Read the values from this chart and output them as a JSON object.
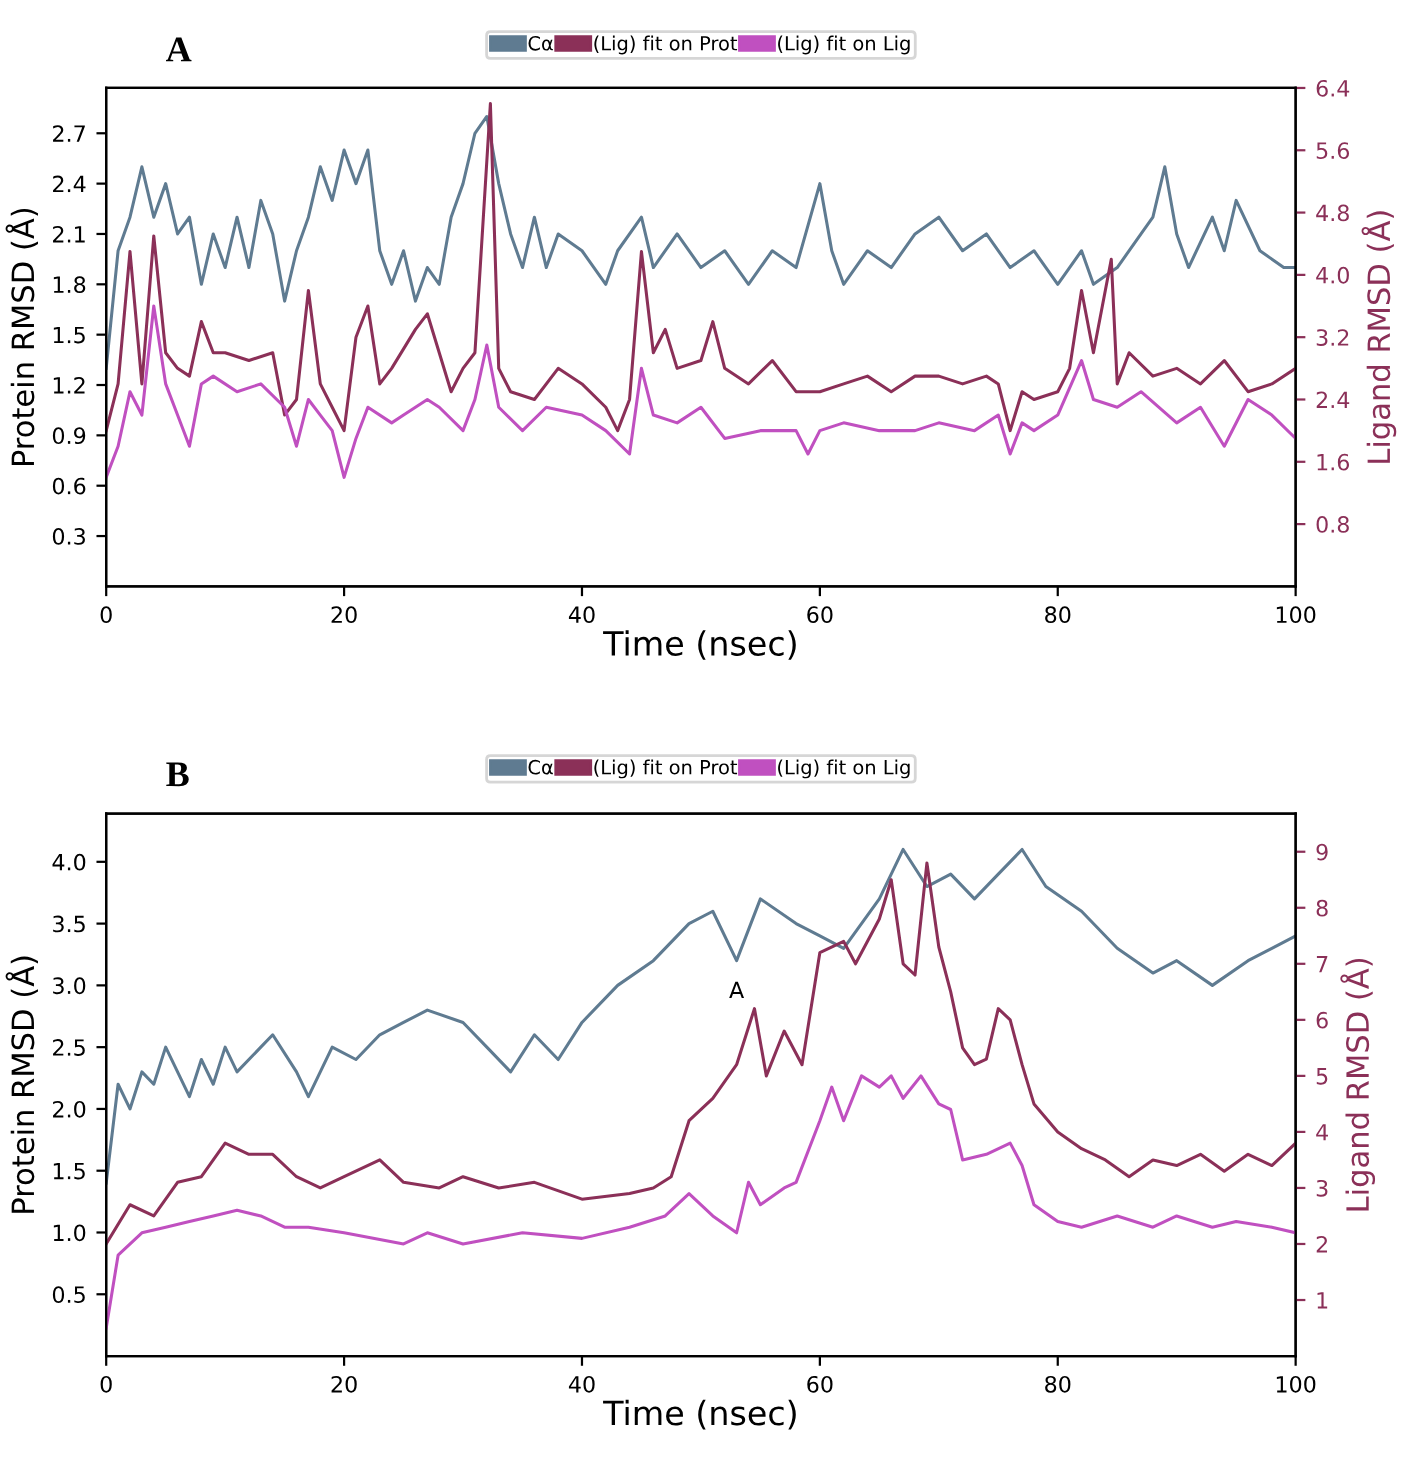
{
  "chart_data": [
    {
      "type": "line",
      "title": "A",
      "xlabel": "Time (nsec)",
      "ylabel": "Protein RMSD (Å)",
      "y2label": "Ligand RMSD (Å)",
      "legend": "top",
      "xlim": [
        0,
        100
      ],
      "xticks": [
        0,
        20,
        40,
        60,
        80,
        100
      ],
      "ylim": [
        0,
        2.97
      ],
      "yticks": [
        0.3,
        0.6,
        0.9,
        1.2,
        1.5,
        1.8,
        2.1,
        2.4,
        2.7
      ],
      "y2lim": [
        0,
        6.4
      ],
      "y2ticks": [
        0.8,
        1.6,
        2.4,
        3.2,
        {
          "value": 4,
          "label": "4.0"
        },
        4.8,
        5.6,
        6.4
      ],
      "series": [
        {
          "name": "Cα",
          "color": "#5f7b91",
          "x": [
            0,
            1,
            2,
            3,
            4,
            5,
            6,
            7,
            8,
            9,
            10,
            11,
            12,
            13,
            14,
            15,
            16,
            17,
            18,
            19,
            20,
            21,
            22,
            23,
            24,
            25,
            26,
            27,
            28,
            29,
            30,
            31,
            32,
            33,
            34,
            35,
            36,
            37,
            38,
            40,
            42,
            43,
            45,
            46,
            48,
            50,
            52,
            54,
            56,
            58,
            60,
            61,
            62,
            64,
            66,
            68,
            70,
            72,
            74,
            76,
            78,
            80,
            82,
            83,
            85,
            87,
            88,
            89,
            90,
            91,
            93,
            94,
            95,
            97,
            99,
            100
          ],
          "values": [
            1.3,
            2.0,
            2.2,
            2.5,
            2.2,
            2.4,
            2.1,
            2.2,
            1.8,
            2.1,
            1.9,
            2.2,
            1.9,
            2.3,
            2.1,
            1.7,
            2.0,
            2.2,
            2.5,
            2.3,
            2.6,
            2.4,
            2.6,
            2.0,
            1.8,
            2.0,
            1.7,
            1.9,
            1.8,
            2.2,
            2.4,
            2.7,
            2.8,
            2.4,
            2.1,
            1.9,
            2.2,
            1.9,
            2.1,
            2.0,
            1.8,
            2.0,
            2.2,
            1.9,
            2.1,
            1.9,
            2.0,
            1.8,
            2.0,
            1.9,
            2.4,
            2.0,
            1.8,
            2.0,
            1.9,
            2.1,
            2.2,
            2.0,
            2.1,
            1.9,
            2.0,
            1.8,
            2.0,
            1.8,
            1.9,
            2.1,
            2.2,
            2.5,
            2.1,
            1.9,
            2.2,
            2.0,
            2.3,
            2.0,
            1.9,
            1.9
          ]
        },
        {
          "name": "(Lig) fit on Prot",
          "color": "#8b3058",
          "axis": "y2",
          "x": [
            0,
            1,
            2,
            3,
            4,
            5,
            6,
            7,
            8,
            9,
            10,
            12,
            14,
            15,
            16,
            17,
            18,
            19,
            20,
            21,
            22,
            23,
            24,
            26,
            27,
            28,
            29,
            30,
            31,
            32.3,
            33,
            34,
            36,
            38,
            40,
            42,
            43,
            44,
            45,
            46,
            47,
            48,
            50,
            51,
            52,
            54,
            56,
            58,
            60,
            62,
            64,
            66,
            68,
            70,
            72,
            74,
            75,
            76,
            77,
            78,
            80,
            81,
            82,
            83,
            84.5,
            85,
            86,
            88,
            90,
            92,
            94,
            96,
            98,
            100
          ],
          "values": [
            2.0,
            2.6,
            4.3,
            2.6,
            4.5,
            3.0,
            2.8,
            2.7,
            3.4,
            3.0,
            3.0,
            2.9,
            3.0,
            2.2,
            2.4,
            3.8,
            2.6,
            2.3,
            2.0,
            3.2,
            3.6,
            2.6,
            2.8,
            3.3,
            3.5,
            3.0,
            2.5,
            2.8,
            3.0,
            6.2,
            2.8,
            2.5,
            2.4,
            2.8,
            2.6,
            2.3,
            2.0,
            2.4,
            4.3,
            3.0,
            3.3,
            2.8,
            2.9,
            3.4,
            2.8,
            2.6,
            2.9,
            2.5,
            2.5,
            2.6,
            2.7,
            2.5,
            2.7,
            2.7,
            2.6,
            2.7,
            2.6,
            2.0,
            2.5,
            2.4,
            2.5,
            2.8,
            3.8,
            3.0,
            4.2,
            2.6,
            3.0,
            2.7,
            2.8,
            2.6,
            2.9,
            2.5,
            2.6,
            2.8
          ]
        },
        {
          "name": "(Lig) fit on Lig",
          "color": "#c050c0",
          "axis": "y2",
          "x": [
            0,
            1,
            2,
            3,
            4,
            5,
            6,
            7,
            8,
            9,
            11,
            13,
            15,
            16,
            17,
            18,
            19,
            20,
            21,
            22,
            24,
            25,
            27,
            28,
            30,
            31,
            32,
            33,
            35,
            37,
            40,
            42,
            44,
            45,
            46,
            48,
            50,
            52,
            55,
            58,
            59,
            60,
            62,
            65,
            68,
            70,
            73,
            75,
            76,
            77,
            78,
            80,
            82,
            83,
            85,
            87,
            90,
            92,
            94,
            96,
            98,
            100
          ],
          "values": [
            1.4,
            1.8,
            2.5,
            2.2,
            3.6,
            2.6,
            2.2,
            1.8,
            2.6,
            2.7,
            2.5,
            2.6,
            2.3,
            1.8,
            2.4,
            2.2,
            2.0,
            1.4,
            1.9,
            2.3,
            2.1,
            2.2,
            2.4,
            2.3,
            2.0,
            2.4,
            3.1,
            2.3,
            2.0,
            2.3,
            2.2,
            2.0,
            1.7,
            2.8,
            2.2,
            2.1,
            2.3,
            1.9,
            2.0,
            2.0,
            1.7,
            2.0,
            2.1,
            2.0,
            2.0,
            2.1,
            2.0,
            2.2,
            1.7,
            2.1,
            2.0,
            2.2,
            2.9,
            2.4,
            2.3,
            2.5,
            2.1,
            2.3,
            1.8,
            2.4,
            2.2,
            1.9
          ]
        }
      ]
    },
    {
      "type": "line",
      "title": "B",
      "xlabel": "Time (nsec)",
      "ylabel": "Protein RMSD (Å)",
      "y2label": "Ligand RMSD (Å)",
      "legend": "top",
      "xlim": [
        0,
        100
      ],
      "xticks": [
        0,
        20,
        40,
        60,
        80,
        100
      ],
      "ylim": [
        0,
        4.39
      ],
      "yticks": [
        0.5,
        {
          "value": 1,
          "label": "1.0"
        },
        1.5,
        {
          "value": 2,
          "label": "2.0"
        },
        2.5,
        {
          "value": 3,
          "label": "3.0"
        },
        3.5,
        {
          "value": 4,
          "label": "4.0"
        }
      ],
      "y2lim": [
        0,
        9.68
      ],
      "y2ticks": [
        1,
        2,
        3,
        4,
        5,
        6,
        7,
        8,
        9
      ],
      "annotations": [
        "A"
      ],
      "series": [
        {
          "name": "Cα",
          "color": "#5f7b91",
          "x": [
            0,
            1,
            2,
            3,
            4,
            5,
            6,
            7,
            8,
            9,
            10,
            11,
            13,
            14,
            16,
            17,
            19,
            21,
            23,
            25,
            27,
            30,
            32,
            34,
            36,
            38,
            40,
            43,
            46,
            49,
            51,
            53,
            55,
            58,
            60,
            62,
            65,
            67,
            69,
            71,
            73,
            75,
            77,
            79,
            82,
            85,
            88,
            90,
            93,
            96,
            98,
            100
          ],
          "values": [
            1.4,
            2.2,
            2.0,
            2.3,
            2.2,
            2.5,
            2.3,
            2.1,
            2.4,
            2.2,
            2.5,
            2.3,
            2.5,
            2.6,
            2.3,
            2.1,
            2.5,
            2.4,
            2.6,
            2.7,
            2.8,
            2.7,
            2.5,
            2.3,
            2.6,
            2.4,
            2.7,
            3.0,
            3.2,
            3.5,
            3.6,
            3.2,
            3.7,
            3.5,
            3.4,
            3.3,
            3.7,
            4.1,
            3.8,
            3.9,
            3.7,
            3.9,
            4.1,
            3.8,
            3.6,
            3.3,
            3.1,
            3.2,
            3.0,
            3.2,
            3.3,
            3.4
          ]
        },
        {
          "name": "(Lig) fit on Prot",
          "color": "#8b3058",
          "axis": "y2",
          "x": [
            0,
            2,
            4,
            6,
            8,
            10,
            12,
            14,
            16,
            18,
            20,
            23,
            25,
            28,
            30,
            33,
            36,
            40,
            44,
            46,
            47.5,
            49,
            51,
            53,
            54.5,
            55.5,
            57,
            58.5,
            60,
            62,
            63,
            65,
            66,
            67,
            68,
            69,
            70,
            71,
            72,
            73,
            74,
            75,
            76,
            77,
            78,
            80,
            82,
            84,
            86,
            88,
            90,
            92,
            94,
            96,
            98,
            100
          ],
          "values": [
            2.0,
            2.7,
            2.5,
            3.1,
            3.2,
            3.8,
            3.6,
            3.6,
            3.2,
            3.0,
            3.2,
            3.5,
            3.1,
            3.0,
            3.2,
            3.0,
            3.1,
            2.8,
            2.9,
            3.0,
            3.2,
            4.2,
            4.6,
            5.2,
            6.2,
            5.0,
            5.8,
            5.2,
            7.2,
            7.4,
            7.0,
            7.8,
            8.5,
            7.0,
            6.8,
            8.8,
            7.3,
            6.5,
            5.5,
            5.2,
            5.3,
            6.2,
            6.0,
            5.2,
            4.5,
            4.0,
            3.7,
            3.5,
            3.2,
            3.5,
            3.4,
            3.6,
            3.3,
            3.6,
            3.4,
            3.8
          ]
        },
        {
          "name": "(Lig) fit on Lig",
          "color": "#c050c0",
          "axis": "y2",
          "x": [
            0,
            1,
            3,
            5,
            7,
            9,
            11,
            13,
            15,
            17,
            20,
            25,
            27,
            30,
            35,
            40,
            44,
            47,
            49,
            51,
            53,
            54,
            55,
            57,
            58,
            60,
            61,
            62,
            63.5,
            65,
            66,
            67,
            68.5,
            70,
            71,
            72,
            74,
            76,
            77,
            78,
            80,
            82,
            85,
            88,
            90,
            93,
            95,
            98,
            100
          ],
          "values": [
            0.5,
            1.8,
            2.2,
            2.3,
            2.4,
            2.5,
            2.6,
            2.5,
            2.3,
            2.3,
            2.2,
            2.0,
            2.2,
            2.0,
            2.2,
            2.1,
            2.3,
            2.5,
            2.9,
            2.5,
            2.2,
            3.1,
            2.7,
            3.0,
            3.1,
            4.2,
            4.8,
            4.2,
            5.0,
            4.8,
            5.0,
            4.6,
            5.0,
            4.5,
            4.4,
            3.5,
            3.6,
            3.8,
            3.4,
            2.7,
            2.4,
            2.3,
            2.5,
            2.3,
            2.5,
            2.3,
            2.4,
            2.3,
            2.2
          ]
        }
      ]
    }
  ]
}
